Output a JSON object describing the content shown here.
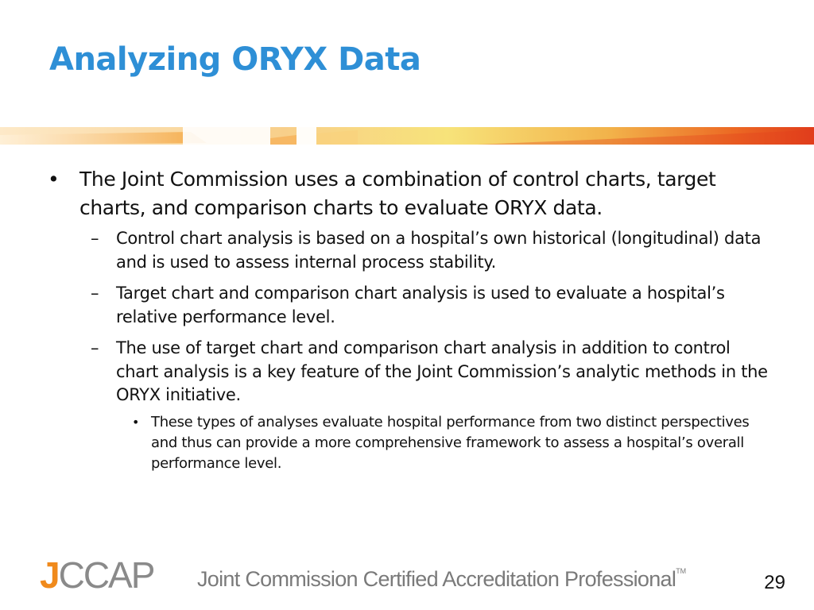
{
  "slide": {
    "title": "Analyzing ORYX Data",
    "page_number": "29"
  },
  "bullets": [
    {
      "marker": "•",
      "text": "The Joint Commission uses a combination of control charts, target charts, and comparison charts to evaluate ORYX data.",
      "subitems": [
        {
          "marker": "–",
          "text": "Control chart analysis is based on a hospital’s own historical (longitudinal) data and is used to assess internal process stability."
        },
        {
          "marker": "–",
          "text": "Target chart and comparison chart analysis is used to evaluate a hospital’s relative performance level."
        },
        {
          "marker": "–",
          "text": "The use of target chart and comparison chart analysis in addition to control chart analysis is a key feature of the Joint Commission’s analytic methods in the ORYX initiative.",
          "subitems": [
            {
              "marker": "•",
              "text": "These types of analyses evaluate hospital performance from two distinct perspectives and thus can provide a more comprehensive framework to assess a hospital’s overall performance level."
            }
          ]
        }
      ]
    }
  ],
  "footer": {
    "logo_text": "JCCAP",
    "tagline": "Joint Commission Certified Accreditation Professional",
    "trademark": "TM"
  },
  "colors": {
    "title": "#2e8fd6",
    "logo_j": "#f08a1c",
    "logo_rest": "#8a8a8a",
    "banner_start": "#f6c37a",
    "banner_end": "#e23b1a"
  }
}
